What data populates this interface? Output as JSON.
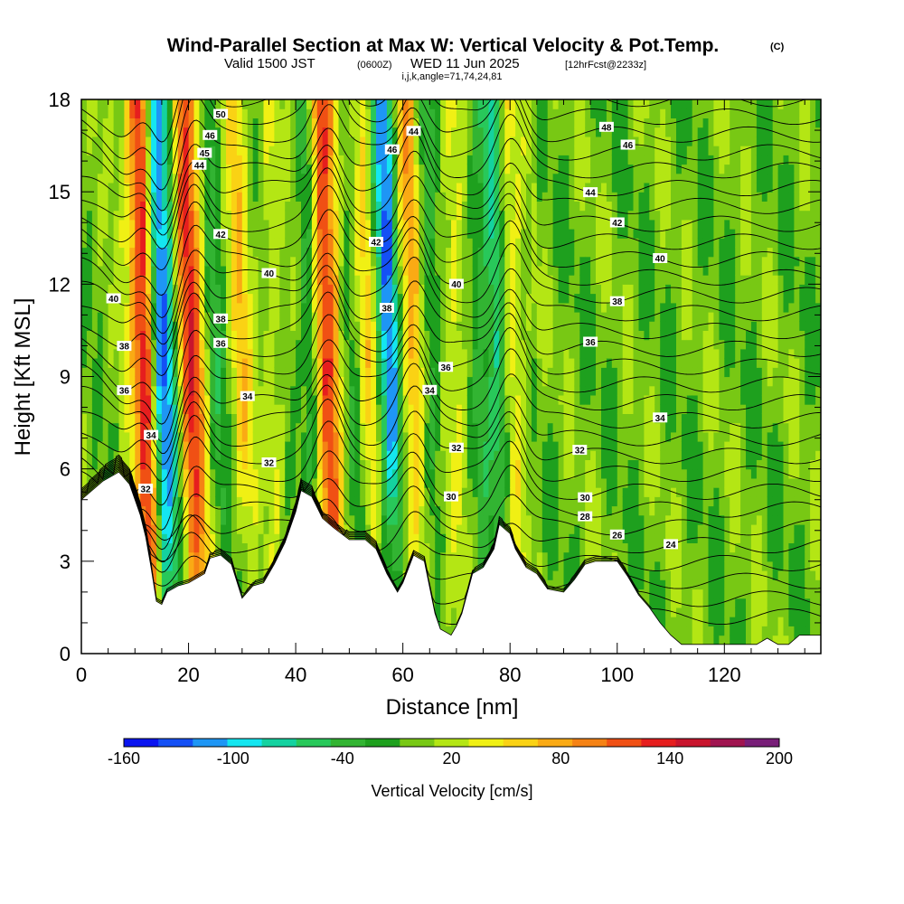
{
  "header": {
    "title": "Wind-Parallel Section at Max W: Vertical Velocity & Pot.Temp.",
    "copyright": "(C)",
    "valid_prefix": "Valid 1500 JST",
    "valid_utc": "(0600Z)",
    "valid_date": "WED 11 Jun 2025",
    "forecast": "[12hrFcst@2233z]",
    "indices": "i,j,k,angle=71,74,24,81"
  },
  "chart_data": {
    "type": "heatmap",
    "title": "Wind-Parallel Section at Max W: Vertical Velocity & Pot.Temp.",
    "xlabel": "Distance [nm]",
    "ylabel": "Height [Kft MSL]",
    "xlim": [
      0,
      138
    ],
    "ylim": [
      0,
      18
    ],
    "x_ticks": [
      0,
      20,
      40,
      60,
      80,
      100,
      120
    ],
    "y_ticks": [
      0,
      3,
      6,
      9,
      12,
      15,
      18
    ],
    "grid": false,
    "colorbar": {
      "label": "Vertical Velocity [cm/s]",
      "tick_values": [
        -160,
        -100,
        -40,
        20,
        80,
        140,
        200
      ],
      "bounds": [
        -160,
        200
      ],
      "step": 20,
      "colors": [
        "#0a14f0",
        "#1450f5",
        "#1e96f5",
        "#14e6f0",
        "#14d2a0",
        "#28c85a",
        "#32b432",
        "#1ea01e",
        "#78c814",
        "#b4e614",
        "#f0f014",
        "#fad214",
        "#faaa14",
        "#f58214",
        "#f05014",
        "#e61e1e",
        "#c8142d",
        "#a01450",
        "#781e78"
      ]
    },
    "vertical_velocity_extremes": [
      {
        "x": 12.5,
        "sign": "updraft",
        "max_cm_s": 200
      },
      {
        "x": 14.5,
        "sign": "downdraft",
        "min_cm_s": -160
      },
      {
        "x": 20.5,
        "sign": "updraft",
        "max_cm_s": 160
      },
      {
        "x": 46,
        "sign": "updraft",
        "max_cm_s": 160
      },
      {
        "x": 62,
        "sign": "updraft",
        "max_cm_s": 100
      },
      {
        "x": 80,
        "sign": "updraft",
        "max_cm_s": 80
      }
    ],
    "terrain_height_kft": {
      "x": [
        0,
        4,
        7,
        9,
        10,
        11,
        12,
        13,
        14,
        15,
        16,
        18,
        20,
        23,
        24,
        26,
        28,
        30,
        32,
        34,
        36,
        38,
        40,
        41,
        43,
        45,
        47,
        50,
        53,
        55,
        57,
        58,
        59,
        60,
        62,
        64,
        66,
        67,
        68,
        69,
        70,
        71,
        73,
        75,
        77,
        78,
        80,
        81,
        83,
        85,
        87,
        90,
        92,
        94,
        96,
        98,
        100,
        102,
        104,
        106,
        108,
        110,
        112,
        120,
        124,
        126,
        128,
        130,
        132,
        134,
        136,
        138
      ],
      "h": [
        5.0,
        5.6,
        5.9,
        5.5,
        5.0,
        4.5,
        3.8,
        2.8,
        1.7,
        1.6,
        2.0,
        2.2,
        2.3,
        2.6,
        3.1,
        3.2,
        2.9,
        1.8,
        2.2,
        2.3,
        2.9,
        3.6,
        4.6,
        5.3,
        5.1,
        4.4,
        4.1,
        3.7,
        3.7,
        3.4,
        2.6,
        2.3,
        2.0,
        2.3,
        3.2,
        3.0,
        1.3,
        0.8,
        0.7,
        0.6,
        0.9,
        1.3,
        2.6,
        2.8,
        3.4,
        4.2,
        3.9,
        3.4,
        2.8,
        2.6,
        2.1,
        2.0,
        2.4,
        2.9,
        3.0,
        3.0,
        3.0,
        2.5,
        1.9,
        1.5,
        1.0,
        0.6,
        0.3,
        0.3,
        0.3,
        0.3,
        0.5,
        0.3,
        0.3,
        0.6,
        0.6,
        0.6
      ]
    },
    "theta_contours_K": [
      24,
      26,
      28,
      30,
      32,
      34,
      36,
      38,
      40,
      42,
      44,
      46,
      48,
      50
    ],
    "theta_contour_labels": [
      "24",
      "26",
      "28",
      "30",
      "32",
      "34",
      "36",
      "38",
      "40",
      "42",
      "44",
      "46",
      "48",
      "50"
    ]
  }
}
